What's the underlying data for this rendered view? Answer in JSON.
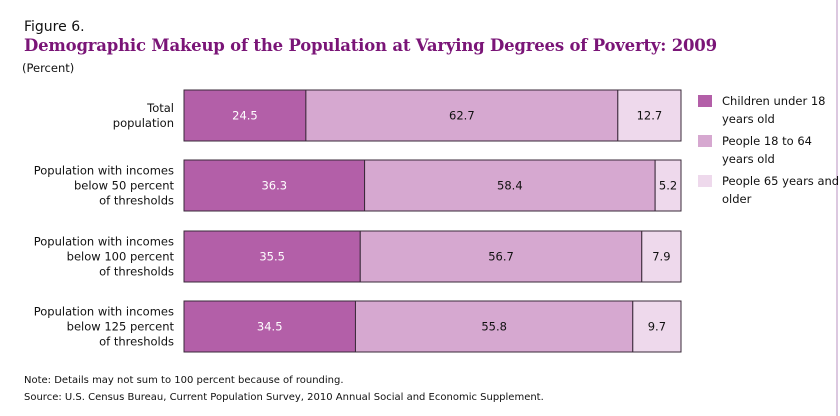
{
  "figure_label": "Figure 6.",
  "chart_data": {
    "type": "bar",
    "orientation": "horizontal",
    "stacked": true,
    "title": "Demographic Makeup of the Population at Varying Degrees of Poverty: 2009",
    "subtitle": "(Percent)",
    "xlabel": "",
    "ylabel": "",
    "xlim": [
      0,
      100
    ],
    "grid": false,
    "legend_position": "right",
    "categories": [
      "Total\npopulation",
      "Population with incomes\nbelow 50 percent\nof thresholds",
      "Population with incomes\nbelow 100 percent\nof thresholds",
      "Population with incomes\nbelow 125 percent\nof thresholds"
    ],
    "series": [
      {
        "name": "Children under 18 years old",
        "color": "#b35fa8",
        "label_color": "#ffffff",
        "values": [
          24.5,
          36.3,
          35.5,
          34.5
        ]
      },
      {
        "name": "People 18 to 64 years old",
        "color": "#d6a8d0",
        "label_color": "#111111",
        "values": [
          62.7,
          58.4,
          56.7,
          55.8
        ]
      },
      {
        "name": "People 65 years and older",
        "color": "#eed9ec",
        "label_color": "#111111",
        "values": [
          12.7,
          5.2,
          7.9,
          9.7
        ]
      }
    ]
  },
  "legend": [
    {
      "label": "Children under 18 years old",
      "color": "#b35fa8"
    },
    {
      "label": "People 18 to 64 years old",
      "color": "#d6a8d0"
    },
    {
      "label": "People 65 years and older",
      "color": "#eed9ec"
    }
  ],
  "colors": {
    "title": "#7a1577",
    "bar_border": "#3a2a3a",
    "rule": "#dcc8e0"
  },
  "note": "Note:  Details may not sum to 100 percent because of rounding.",
  "source": "Source: U.S. Census Bureau, Current Population Survey, 2010 Annual Social and Economic Supplement."
}
